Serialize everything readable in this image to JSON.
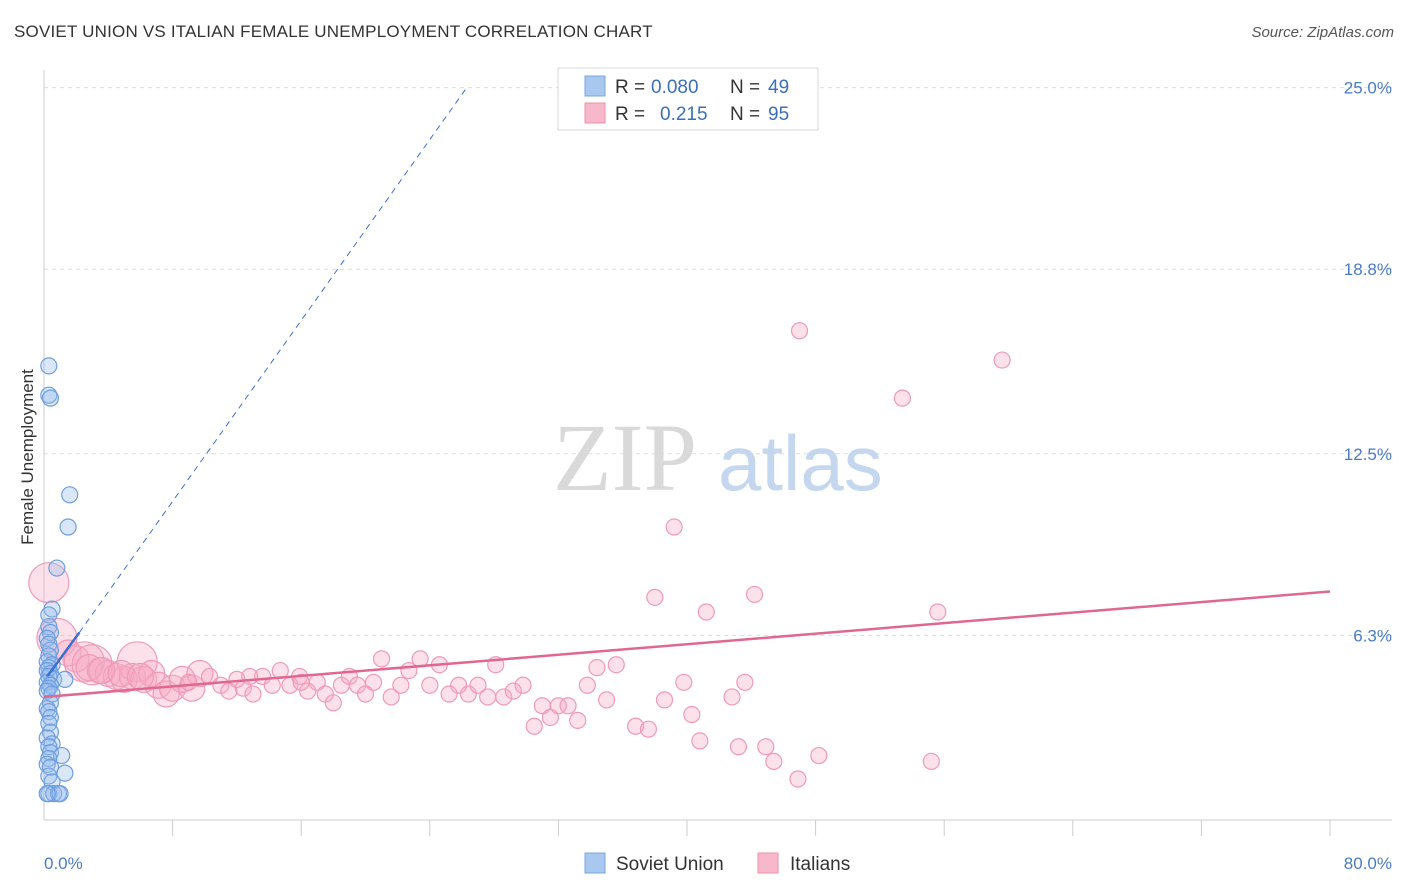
{
  "header": {
    "title": "SOVIET UNION VS ITALIAN FEMALE UNEMPLOYMENT CORRELATION CHART",
    "source": "Source: ZipAtlas.com"
  },
  "watermark": {
    "part1": "ZIP",
    "part2": "atlas"
  },
  "legend": {
    "rows": [
      {
        "r_label": "R =",
        "r_value": "0.080",
        "n_label": "N =",
        "n_value": "49",
        "color": "#a9c8f0"
      },
      {
        "r_label": "R =",
        "r_value": "0.215",
        "n_label": "N =",
        "n_value": "95",
        "color": "#f7b8cb"
      }
    ]
  },
  "bottom_legend": {
    "items": [
      "Soviet Union",
      "Italians"
    ]
  },
  "chart_data": {
    "type": "scatter",
    "title": "SOVIET UNION VS ITALIAN FEMALE UNEMPLOYMENT CORRELATION CHART",
    "xlabel": "",
    "ylabel": "Female Unemployment",
    "xlim": [
      0,
      80
    ],
    "ylim": [
      0,
      25.6
    ],
    "x_tick_labels": [
      "0.0%",
      "80.0%"
    ],
    "y_ticks": [
      6.3,
      12.5,
      18.8,
      25.0
    ],
    "y_tick_labels": [
      "6.3%",
      "12.5%",
      "18.8%",
      "25.0%"
    ],
    "grid": true,
    "colors": {
      "soviet": "#6f9fe0",
      "italians": "#f07aa0",
      "soviet_line": "#3b6fd0",
      "italians_line": "#e06890"
    },
    "series": [
      {
        "name": "Soviet Union",
        "R": 0.08,
        "N": 49,
        "points": [
          [
            0.3,
            15.5
          ],
          [
            0.3,
            14.5
          ],
          [
            0.4,
            14.4
          ],
          [
            1.6,
            11.1
          ],
          [
            1.5,
            10.0
          ],
          [
            0.8,
            8.6
          ],
          [
            0.5,
            7.2
          ],
          [
            0.3,
            7.0
          ],
          [
            0.3,
            6.6
          ],
          [
            0.4,
            6.4
          ],
          [
            0.2,
            6.2
          ],
          [
            0.3,
            6.0
          ],
          [
            0.4,
            5.8
          ],
          [
            0.3,
            5.6
          ],
          [
            0.2,
            5.4
          ],
          [
            0.5,
            5.3
          ],
          [
            0.3,
            5.2
          ],
          [
            0.2,
            5.1
          ],
          [
            0.4,
            5.0
          ],
          [
            0.3,
            4.9
          ],
          [
            0.6,
            4.8
          ],
          [
            1.3,
            4.8
          ],
          [
            0.2,
            4.7
          ],
          [
            0.4,
            4.6
          ],
          [
            0.3,
            4.5
          ],
          [
            0.2,
            4.4
          ],
          [
            0.5,
            4.3
          ],
          [
            0.4,
            4.0
          ],
          [
            0.2,
            3.8
          ],
          [
            0.3,
            3.7
          ],
          [
            0.4,
            3.5
          ],
          [
            0.3,
            3.3
          ],
          [
            0.4,
            3.0
          ],
          [
            0.2,
            2.8
          ],
          [
            0.5,
            2.6
          ],
          [
            0.3,
            2.5
          ],
          [
            0.4,
            2.3
          ],
          [
            1.1,
            2.2
          ],
          [
            0.3,
            2.1
          ],
          [
            0.2,
            1.9
          ],
          [
            0.4,
            1.8
          ],
          [
            1.3,
            1.6
          ],
          [
            0.3,
            1.5
          ],
          [
            0.5,
            1.3
          ],
          [
            0.3,
            0.9
          ],
          [
            0.6,
            0.9
          ],
          [
            0.9,
            0.9
          ],
          [
            1.0,
            0.9
          ],
          [
            0.2,
            0.9
          ]
        ],
        "trend_solid": [
          [
            0.2,
            4.9
          ],
          [
            2.2,
            6.4
          ]
        ],
        "trend_dashed": [
          [
            2.2,
            6.4
          ],
          [
            26.3,
            25.0
          ]
        ]
      },
      {
        "name": "Italians",
        "R": 0.215,
        "N": 95,
        "points": [
          [
            0.3,
            8.1
          ],
          [
            0.8,
            6.2
          ],
          [
            1.5,
            5.7
          ],
          [
            2.0,
            5.5
          ],
          [
            2.5,
            5.4
          ],
          [
            3.0,
            5.3
          ],
          [
            3.5,
            5.1
          ],
          [
            4.0,
            5.0
          ],
          [
            4.5,
            4.9
          ],
          [
            5.0,
            4.8
          ],
          [
            5.5,
            4.9
          ],
          [
            5.8,
            5.4
          ],
          [
            6.2,
            4.8
          ],
          [
            6.7,
            5.0
          ],
          [
            7.1,
            4.6
          ],
          [
            7.6,
            4.3
          ],
          [
            8.0,
            4.5
          ],
          [
            8.6,
            4.8
          ],
          [
            9.2,
            4.5
          ],
          [
            9.7,
            5.0
          ],
          [
            10.3,
            4.9
          ],
          [
            11.0,
            4.6
          ],
          [
            11.5,
            4.4
          ],
          [
            12.0,
            4.8
          ],
          [
            12.4,
            4.5
          ],
          [
            13.0,
            4.3
          ],
          [
            13.6,
            4.9
          ],
          [
            14.2,
            4.6
          ],
          [
            14.7,
            5.1
          ],
          [
            15.3,
            4.6
          ],
          [
            15.9,
            4.9
          ],
          [
            16.4,
            4.4
          ],
          [
            17.0,
            4.7
          ],
          [
            17.5,
            4.3
          ],
          [
            18.0,
            4.0
          ],
          [
            18.5,
            4.6
          ],
          [
            19.0,
            4.9
          ],
          [
            19.5,
            4.6
          ],
          [
            20.0,
            4.3
          ],
          [
            20.5,
            4.7
          ],
          [
            21.0,
            5.5
          ],
          [
            21.6,
            4.2
          ],
          [
            22.2,
            4.6
          ],
          [
            22.7,
            5.1
          ],
          [
            23.4,
            5.5
          ],
          [
            24.0,
            4.6
          ],
          [
            24.6,
            5.3
          ],
          [
            25.2,
            4.3
          ],
          [
            25.8,
            4.6
          ],
          [
            26.4,
            4.3
          ],
          [
            27.0,
            4.6
          ],
          [
            27.6,
            4.2
          ],
          [
            28.1,
            5.3
          ],
          [
            28.6,
            4.2
          ],
          [
            29.2,
            4.4
          ],
          [
            29.8,
            4.6
          ],
          [
            30.5,
            3.2
          ],
          [
            31.0,
            3.9
          ],
          [
            31.5,
            3.5
          ],
          [
            32.0,
            3.9
          ],
          [
            32.6,
            3.9
          ],
          [
            33.2,
            3.4
          ],
          [
            33.8,
            4.6
          ],
          [
            34.4,
            5.2
          ],
          [
            35.0,
            4.1
          ],
          [
            35.6,
            5.3
          ],
          [
            36.8,
            3.2
          ],
          [
            37.6,
            3.1
          ],
          [
            38.0,
            7.6
          ],
          [
            38.6,
            4.1
          ],
          [
            39.2,
            10.0
          ],
          [
            39.8,
            4.7
          ],
          [
            40.3,
            3.6
          ],
          [
            40.8,
            2.7
          ],
          [
            41.2,
            7.1
          ],
          [
            42.8,
            4.2
          ],
          [
            43.2,
            2.5
          ],
          [
            43.6,
            4.7
          ],
          [
            44.2,
            7.7
          ],
          [
            44.9,
            2.5
          ],
          [
            45.4,
            2.0
          ],
          [
            46.9,
            1.4
          ],
          [
            47.0,
            16.7
          ],
          [
            48.2,
            2.2
          ],
          [
            53.4,
            14.4
          ],
          [
            55.2,
            2.0
          ],
          [
            55.6,
            7.1
          ],
          [
            59.6,
            15.7
          ],
          [
            2.8,
            5.2
          ],
          [
            3.6,
            5.1
          ],
          [
            4.8,
            5.0
          ],
          [
            6.0,
            4.9
          ],
          [
            9.0,
            4.7
          ],
          [
            12.8,
            4.9
          ],
          [
            16.0,
            4.7
          ]
        ],
        "bubble_size_rank": [
          3,
          3,
          2,
          2,
          3,
          3,
          2,
          2,
          2,
          2,
          2,
          3,
          2,
          2,
          2,
          2,
          2,
          2,
          2,
          2,
          1,
          1,
          1,
          1,
          1,
          1,
          1,
          1,
          1,
          1,
          1,
          1,
          1,
          1,
          1,
          1,
          1,
          1,
          1,
          1,
          1,
          1,
          1,
          1,
          1,
          1,
          1,
          1,
          1,
          1,
          1,
          1,
          1,
          1,
          1,
          1,
          1,
          1,
          1,
          1,
          1,
          1,
          1,
          1,
          1,
          1,
          1,
          1,
          1,
          1,
          1,
          1,
          1,
          1,
          1,
          1,
          1,
          1,
          1,
          1,
          1,
          1,
          1,
          1,
          1,
          1,
          1,
          1,
          2,
          2,
          2,
          2,
          1,
          1,
          1
        ],
        "trend": [
          [
            0,
            4.2
          ],
          [
            80,
            7.8
          ]
        ]
      }
    ]
  }
}
